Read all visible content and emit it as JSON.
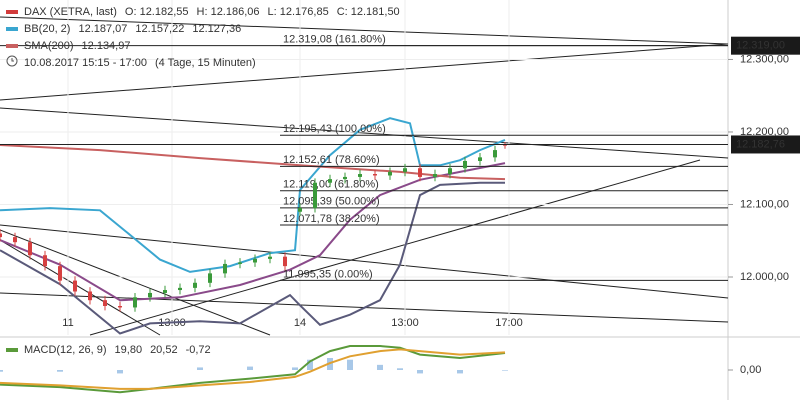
{
  "chart_data": [
    {
      "type": "candlestick",
      "info": [
        {
          "name": "DAX (XETRA, last)",
          "color": "#d23c3c",
          "values": [
            "O: 12.182,55",
            "H: 12.186,06",
            "L: 12.176,85",
            "C: 12.181,50"
          ]
        },
        {
          "name": "BB(20, 2)",
          "color": "#3aa6d0",
          "values": [
            "12.187,07",
            "12.157,22",
            "12.127,36"
          ]
        },
        {
          "name": "SMA(200)",
          "color": "#c86060",
          "values": [
            "12.134,97"
          ]
        },
        {
          "name": "10.08.2017 15:15 - 17:00",
          "values": [
            "(4 Tage, 15 Minuten)"
          ]
        }
      ],
      "x": [
        0,
        3,
        6,
        9,
        12,
        15,
        18,
        21,
        24,
        27,
        30,
        33,
        36,
        39,
        42,
        45,
        48,
        51,
        54,
        57,
        60,
        63,
        66,
        69,
        72,
        75,
        78,
        81,
        84,
        87,
        90,
        93,
        96,
        99,
        101
      ],
      "open": [
        12060,
        12055,
        12048,
        12030,
        12015,
        11995,
        11980,
        11968,
        11960,
        11958,
        11972,
        11978,
        11982,
        11985,
        11992,
        12005,
        12018,
        12020,
        12025,
        12028,
        12090,
        12095,
        12130,
        12135,
        12138,
        12142,
        12140,
        12145,
        12150,
        12138,
        12142,
        12150,
        12160,
        12165,
        12182.55
      ],
      "high": [
        12066,
        12061,
        12054,
        12036,
        12021,
        12001,
        11986,
        11974,
        11966,
        11978,
        11984,
        11988,
        11991,
        11998,
        12011,
        12024,
        12026,
        12031,
        12034,
        12034,
        12101,
        12136,
        12141,
        12144,
        12148,
        12148,
        12151,
        12156,
        12156,
        12148,
        12156,
        12166,
        12171,
        12181,
        12186.06
      ],
      "low": [
        12049,
        12042,
        12024,
        12009,
        11989,
        11974,
        11962,
        11954,
        11952,
        11952,
        11966,
        11972,
        11976,
        11979,
        11986,
        11999,
        12012,
        12014,
        12019,
        12009,
        12084,
        12089,
        12124,
        12129,
        12132,
        12134,
        12134,
        12139,
        12132,
        12132,
        12136,
        12144,
        12154,
        12159,
        12176.85
      ],
      "close": [
        12055,
        12048,
        12030,
        12015,
        11995,
        11980,
        11968,
        11960,
        11958,
        11972,
        11978,
        11982,
        11985,
        11992,
        12005,
        12018,
        12020,
        12025,
        12028,
        12015,
        12095,
        12130,
        12135,
        12138,
        12142,
        12140,
        12145,
        12150,
        12138,
        12142,
        12150,
        12160,
        12165,
        12175,
        12181.5
      ],
      "up_color": "#3a9a3a",
      "down_color": "#d64040",
      "lines": [
        {
          "color": "#3aa6d0",
          "x": [
            0,
            10,
            20,
            26,
            32,
            38,
            46,
            54,
            59,
            60,
            66,
            72,
            78,
            82,
            84,
            88,
            92,
            96,
            101
          ],
          "values": [
            12092,
            12095,
            12092,
            12058,
            12024,
            12007,
            12015,
            12033,
            12037,
            12120,
            12168,
            12203,
            12219,
            12212,
            12154,
            12154,
            12161,
            12175,
            12189
          ]
        },
        {
          "color": "#8a4a8a",
          "x": [
            0,
            12,
            24,
            36,
            48,
            58,
            64,
            70,
            76,
            84,
            92,
            101
          ],
          "values": [
            12051,
            12017,
            11968,
            11972,
            11989,
            12010,
            12030,
            12079,
            12113,
            12134,
            12145,
            12157
          ]
        },
        {
          "color": "#5a5a7a",
          "x": [
            0,
            12,
            24,
            30,
            40,
            48,
            58,
            60,
            64,
            70,
            76,
            80,
            84,
            88,
            96,
            101
          ],
          "values": [
            12037,
            11990,
            11922,
            11936,
            11939,
            11936,
            11975,
            11961,
            11934,
            11948,
            11968,
            12017,
            12113,
            12127,
            12130,
            12130
          ]
        },
        {
          "color": "#c86060",
          "x": [
            0,
            20,
            40,
            60,
            80,
            92,
            101
          ],
          "values": [
            12182,
            12175,
            12164,
            12154,
            12145,
            12137,
            12135
          ]
        }
      ],
      "fib_levels": [
        {
          "value": 12319.08,
          "label": "12.319,08 (161.80%)"
        },
        {
          "value": 12195.43,
          "label": "12.195,43 (100.00%)"
        },
        {
          "value": 12152.61,
          "label": "12.152,61 (78.60%)"
        },
        {
          "value": 12119.0,
          "label": "12.119,00 (61.80%)"
        },
        {
          "value": 12095.39,
          "label": "12.095,39 (50.00%)"
        },
        {
          "value": 12071.78,
          "label": "12.071,78 (38.20%)"
        },
        {
          "value": 11995.35,
          "label": "11.995,35 (0.00%)"
        }
      ],
      "price_tags": [
        {
          "value": 12319,
          "label": "12.319,00"
        },
        {
          "value": 12182.76,
          "label": "12.182,76"
        }
      ],
      "xlim": [
        0,
        145.6
      ],
      "xticks": [
        {
          "value": 13.6,
          "label": "11"
        },
        {
          "value": 34.4,
          "label": "13:00"
        },
        {
          "value": 60,
          "label": "14"
        },
        {
          "value": 81,
          "label": "13:00"
        },
        {
          "value": 101.8,
          "label": "17:00"
        }
      ],
      "ylim": [
        11920,
        12382
      ],
      "yticks": [
        {
          "value": 12000,
          "label": "12.000,00"
        },
        {
          "value": 12100,
          "label": "12.100,00"
        },
        {
          "value": 12200,
          "label": "12.200,00"
        },
        {
          "value": 12300,
          "label": "12.300,00"
        }
      ],
      "grid": true
    },
    {
      "type": "macd",
      "info": [
        {
          "name": "MACD(12, 26, 9)",
          "color": "#5a9a3a",
          "values": [
            "19,80",
            "20,52",
            "-0,72"
          ]
        }
      ],
      "x": [
        0,
        12,
        24,
        30,
        40,
        50,
        59,
        62,
        66,
        70,
        76,
        80,
        84,
        92,
        101
      ],
      "series": [
        {
          "color": "#5a9a3a",
          "values": [
            -17,
            -20,
            -26,
            -22,
            -15,
            -10,
            -5,
            10,
            22,
            28,
            28,
            26,
            18,
            14,
            19.8
          ]
        },
        {
          "color": "#e0a030",
          "values": [
            -15,
            -18,
            -22,
            -22,
            -18,
            -14,
            -8,
            -2,
            8,
            16,
            22,
            24,
            22,
            18,
            20.52
          ]
        }
      ],
      "histogram": {
        "color": "#a8c8e8",
        "values": [
          -2,
          -2,
          -4,
          0,
          3,
          4,
          3,
          12,
          14,
          12,
          6,
          2,
          -4,
          -4,
          -0.72
        ]
      },
      "xlim": [
        0,
        145.6
      ],
      "ylim": [
        -35,
        35
      ],
      "yticks": [
        {
          "value": 0,
          "label": "0,00"
        }
      ]
    }
  ]
}
